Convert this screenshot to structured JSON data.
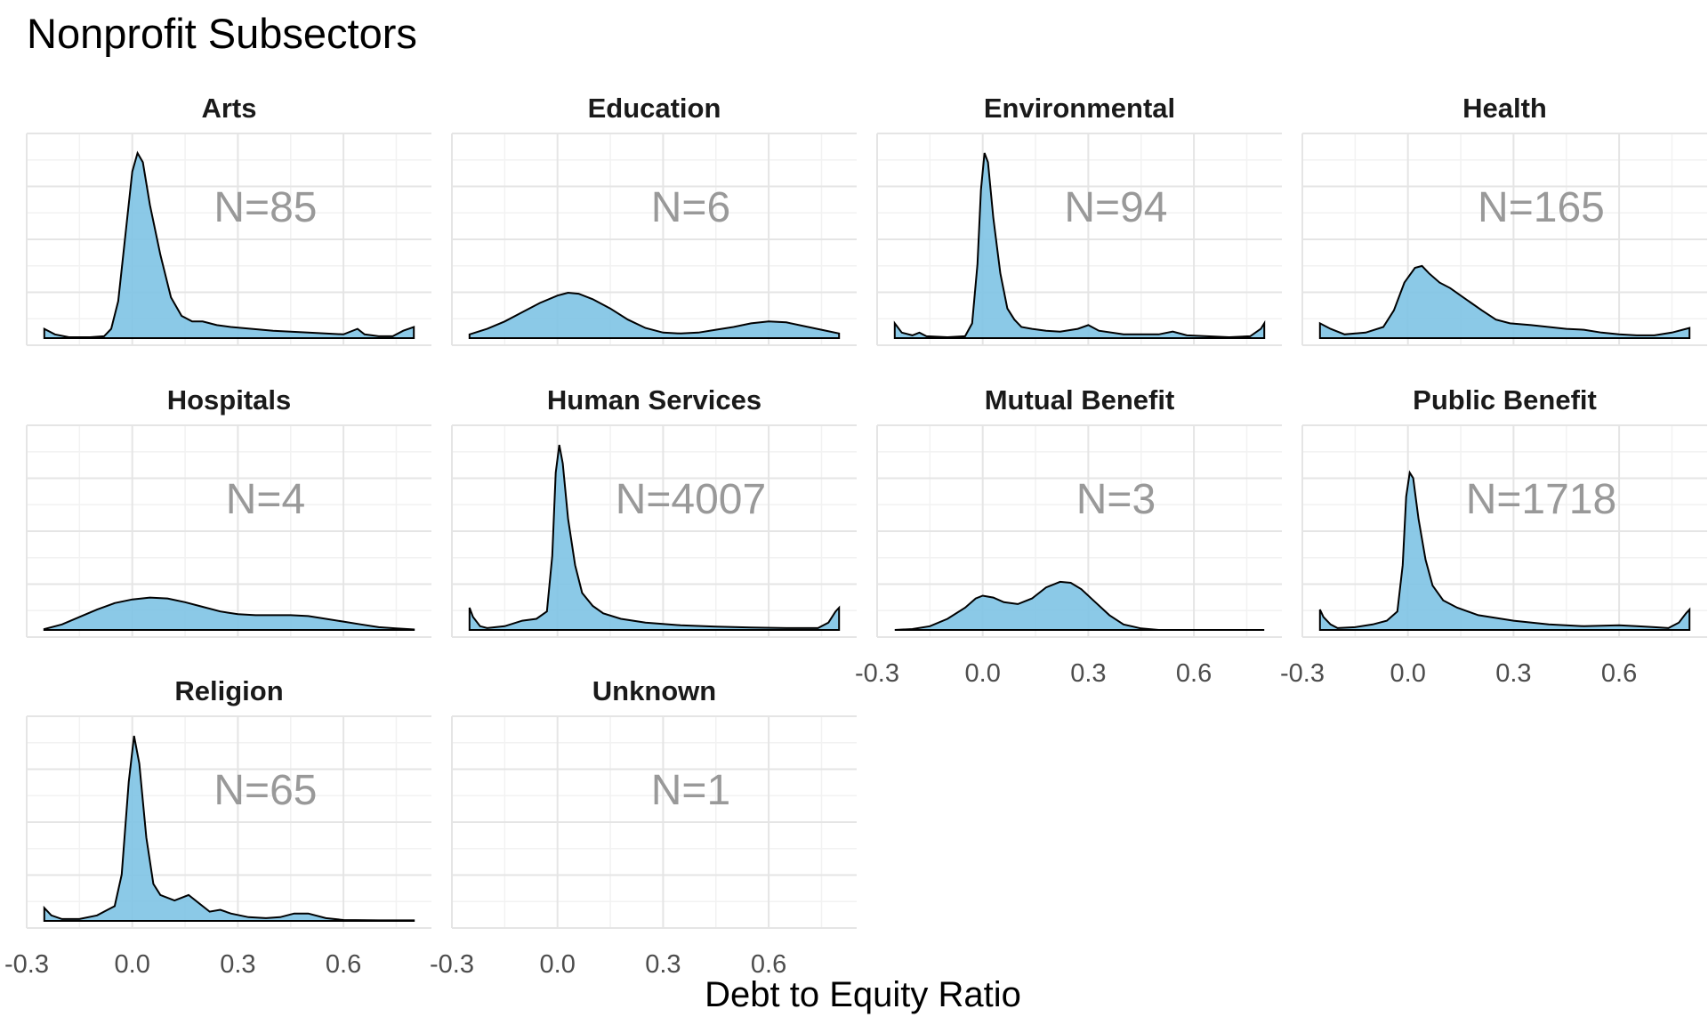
{
  "chart_data": {
    "type": "area",
    "title": "Nonprofit Subsectors",
    "xlabel": "Debt to Equity Ratio",
    "ylabel": "",
    "xlim": [
      -0.3,
      0.85
    ],
    "x_ticks": [
      "-0.3",
      "0.0",
      "0.3",
      "0.6"
    ],
    "x_tick_values": [
      -0.3,
      0.0,
      0.3,
      0.6
    ],
    "grid": true,
    "fill_color": "#7EC3E4",
    "line_color": "#000000",
    "label_color": "#999999",
    "panels": [
      {
        "name": "Arts",
        "n_label": "N=85",
        "x_axis_shown": false,
        "points": [
          [
            -0.25,
            0.05
          ],
          [
            -0.22,
            0.02
          ],
          [
            -0.18,
            0.005
          ],
          [
            -0.12,
            0.005
          ],
          [
            -0.08,
            0.01
          ],
          [
            -0.06,
            0.05
          ],
          [
            -0.04,
            0.2
          ],
          [
            -0.02,
            0.55
          ],
          [
            0.0,
            0.9
          ],
          [
            0.015,
            1.0
          ],
          [
            0.03,
            0.95
          ],
          [
            0.05,
            0.72
          ],
          [
            0.08,
            0.45
          ],
          [
            0.11,
            0.22
          ],
          [
            0.14,
            0.12
          ],
          [
            0.17,
            0.09
          ],
          [
            0.2,
            0.09
          ],
          [
            0.24,
            0.07
          ],
          [
            0.28,
            0.06
          ],
          [
            0.34,
            0.05
          ],
          [
            0.4,
            0.04
          ],
          [
            0.5,
            0.03
          ],
          [
            0.6,
            0.02
          ],
          [
            0.64,
            0.05
          ],
          [
            0.66,
            0.02
          ],
          [
            0.7,
            0.01
          ],
          [
            0.74,
            0.01
          ],
          [
            0.77,
            0.04
          ],
          [
            0.8,
            0.06
          ]
        ]
      },
      {
        "name": "Education",
        "n_label": "N=6",
        "x_axis_shown": false,
        "points": [
          [
            -0.25,
            0.02
          ],
          [
            -0.2,
            0.05
          ],
          [
            -0.15,
            0.09
          ],
          [
            -0.1,
            0.14
          ],
          [
            -0.05,
            0.19
          ],
          [
            0.0,
            0.23
          ],
          [
            0.03,
            0.245
          ],
          [
            0.06,
            0.24
          ],
          [
            0.1,
            0.21
          ],
          [
            0.15,
            0.16
          ],
          [
            0.2,
            0.1
          ],
          [
            0.25,
            0.055
          ],
          [
            0.3,
            0.03
          ],
          [
            0.35,
            0.025
          ],
          [
            0.4,
            0.03
          ],
          [
            0.45,
            0.045
          ],
          [
            0.5,
            0.06
          ],
          [
            0.55,
            0.08
          ],
          [
            0.6,
            0.09
          ],
          [
            0.65,
            0.085
          ],
          [
            0.7,
            0.065
          ],
          [
            0.75,
            0.045
          ],
          [
            0.8,
            0.025
          ]
        ]
      },
      {
        "name": "Environmental",
        "n_label": "N=94",
        "x_axis_shown": false,
        "points": [
          [
            -0.25,
            0.08
          ],
          [
            -0.23,
            0.03
          ],
          [
            -0.2,
            0.015
          ],
          [
            -0.18,
            0.03
          ],
          [
            -0.16,
            0.01
          ],
          [
            -0.1,
            0.005
          ],
          [
            -0.05,
            0.01
          ],
          [
            -0.03,
            0.08
          ],
          [
            -0.015,
            0.4
          ],
          [
            -0.005,
            0.8
          ],
          [
            0.005,
            1.0
          ],
          [
            0.015,
            0.95
          ],
          [
            0.03,
            0.65
          ],
          [
            0.05,
            0.35
          ],
          [
            0.07,
            0.16
          ],
          [
            0.09,
            0.1
          ],
          [
            0.11,
            0.06
          ],
          [
            0.14,
            0.05
          ],
          [
            0.18,
            0.04
          ],
          [
            0.22,
            0.035
          ],
          [
            0.27,
            0.05
          ],
          [
            0.3,
            0.07
          ],
          [
            0.33,
            0.04
          ],
          [
            0.4,
            0.02
          ],
          [
            0.5,
            0.02
          ],
          [
            0.54,
            0.035
          ],
          [
            0.58,
            0.015
          ],
          [
            0.7,
            0.005
          ],
          [
            0.76,
            0.01
          ],
          [
            0.79,
            0.05
          ],
          [
            0.8,
            0.08
          ]
        ]
      },
      {
        "name": "Health",
        "n_label": "N=165",
        "x_axis_shown": false,
        "points": [
          [
            -0.25,
            0.08
          ],
          [
            -0.22,
            0.05
          ],
          [
            -0.18,
            0.02
          ],
          [
            -0.12,
            0.03
          ],
          [
            -0.07,
            0.06
          ],
          [
            -0.04,
            0.15
          ],
          [
            -0.01,
            0.3
          ],
          [
            0.02,
            0.38
          ],
          [
            0.04,
            0.39
          ],
          [
            0.06,
            0.35
          ],
          [
            0.09,
            0.3
          ],
          [
            0.12,
            0.27
          ],
          [
            0.15,
            0.23
          ],
          [
            0.18,
            0.19
          ],
          [
            0.21,
            0.15
          ],
          [
            0.25,
            0.1
          ],
          [
            0.29,
            0.08
          ],
          [
            0.35,
            0.07
          ],
          [
            0.4,
            0.06
          ],
          [
            0.45,
            0.05
          ],
          [
            0.5,
            0.045
          ],
          [
            0.55,
            0.03
          ],
          [
            0.6,
            0.02
          ],
          [
            0.65,
            0.015
          ],
          [
            0.7,
            0.015
          ],
          [
            0.75,
            0.03
          ],
          [
            0.8,
            0.055
          ]
        ]
      },
      {
        "name": "Hospitals",
        "n_label": "N=4",
        "x_axis_shown": false,
        "points": [
          [
            -0.25,
            0.005
          ],
          [
            -0.2,
            0.03
          ],
          [
            -0.15,
            0.07
          ],
          [
            -0.1,
            0.11
          ],
          [
            -0.05,
            0.145
          ],
          [
            0.0,
            0.165
          ],
          [
            0.05,
            0.175
          ],
          [
            0.1,
            0.17
          ],
          [
            0.15,
            0.15
          ],
          [
            0.2,
            0.125
          ],
          [
            0.25,
            0.1
          ],
          [
            0.3,
            0.085
          ],
          [
            0.35,
            0.08
          ],
          [
            0.4,
            0.08
          ],
          [
            0.45,
            0.08
          ],
          [
            0.5,
            0.075
          ],
          [
            0.55,
            0.06
          ],
          [
            0.6,
            0.045
          ],
          [
            0.65,
            0.03
          ],
          [
            0.7,
            0.015
          ],
          [
            0.75,
            0.008
          ],
          [
            0.8,
            0.003
          ]
        ]
      },
      {
        "name": "Human Services",
        "n_label": "N=4007",
        "x_axis_shown": false,
        "points": [
          [
            -0.25,
            0.12
          ],
          [
            -0.24,
            0.07
          ],
          [
            -0.22,
            0.02
          ],
          [
            -0.2,
            0.01
          ],
          [
            -0.15,
            0.02
          ],
          [
            -0.1,
            0.05
          ],
          [
            -0.06,
            0.06
          ],
          [
            -0.03,
            0.1
          ],
          [
            -0.015,
            0.4
          ],
          [
            -0.005,
            0.85
          ],
          [
            0.005,
            1.0
          ],
          [
            0.015,
            0.9
          ],
          [
            0.03,
            0.6
          ],
          [
            0.05,
            0.35
          ],
          [
            0.07,
            0.2
          ],
          [
            0.1,
            0.13
          ],
          [
            0.13,
            0.09
          ],
          [
            0.18,
            0.06
          ],
          [
            0.25,
            0.04
          ],
          [
            0.35,
            0.025
          ],
          [
            0.45,
            0.018
          ],
          [
            0.55,
            0.013
          ],
          [
            0.65,
            0.01
          ],
          [
            0.74,
            0.01
          ],
          [
            0.77,
            0.04
          ],
          [
            0.79,
            0.1
          ],
          [
            0.8,
            0.12
          ]
        ]
      },
      {
        "name": "Mutual Benefit",
        "n_label": "N=3",
        "x_axis_shown": true,
        "points": [
          [
            -0.25,
            0.0
          ],
          [
            -0.2,
            0.005
          ],
          [
            -0.15,
            0.02
          ],
          [
            -0.1,
            0.06
          ],
          [
            -0.05,
            0.12
          ],
          [
            -0.02,
            0.17
          ],
          [
            0.0,
            0.185
          ],
          [
            0.03,
            0.175
          ],
          [
            0.06,
            0.15
          ],
          [
            0.1,
            0.14
          ],
          [
            0.14,
            0.17
          ],
          [
            0.18,
            0.23
          ],
          [
            0.22,
            0.26
          ],
          [
            0.25,
            0.255
          ],
          [
            0.28,
            0.22
          ],
          [
            0.32,
            0.15
          ],
          [
            0.36,
            0.08
          ],
          [
            0.4,
            0.03
          ],
          [
            0.45,
            0.008
          ],
          [
            0.5,
            0.0
          ],
          [
            0.6,
            0.0
          ],
          [
            0.7,
            0.0
          ],
          [
            0.8,
            0.0
          ]
        ]
      },
      {
        "name": "Public Benefit",
        "n_label": "N=1718",
        "x_axis_shown": true,
        "points": [
          [
            -0.25,
            0.11
          ],
          [
            -0.24,
            0.07
          ],
          [
            -0.22,
            0.03
          ],
          [
            -0.2,
            0.01
          ],
          [
            -0.15,
            0.015
          ],
          [
            -0.1,
            0.03
          ],
          [
            -0.06,
            0.05
          ],
          [
            -0.03,
            0.1
          ],
          [
            -0.015,
            0.35
          ],
          [
            -0.005,
            0.72
          ],
          [
            0.005,
            0.85
          ],
          [
            0.015,
            0.82
          ],
          [
            0.03,
            0.6
          ],
          [
            0.05,
            0.38
          ],
          [
            0.07,
            0.24
          ],
          [
            0.1,
            0.16
          ],
          [
            0.14,
            0.12
          ],
          [
            0.2,
            0.08
          ],
          [
            0.3,
            0.05
          ],
          [
            0.4,
            0.03
          ],
          [
            0.5,
            0.02
          ],
          [
            0.6,
            0.025
          ],
          [
            0.65,
            0.02
          ],
          [
            0.7,
            0.015
          ],
          [
            0.74,
            0.01
          ],
          [
            0.77,
            0.04
          ],
          [
            0.79,
            0.09
          ],
          [
            0.8,
            0.11
          ]
        ]
      },
      {
        "name": "Religion",
        "n_label": "N=65",
        "x_axis_shown": true,
        "points": [
          [
            -0.25,
            0.07
          ],
          [
            -0.23,
            0.03
          ],
          [
            -0.2,
            0.01
          ],
          [
            -0.15,
            0.01
          ],
          [
            -0.1,
            0.03
          ],
          [
            -0.07,
            0.06
          ],
          [
            -0.05,
            0.08
          ],
          [
            -0.03,
            0.25
          ],
          [
            -0.01,
            0.75
          ],
          [
            0.005,
            1.0
          ],
          [
            0.02,
            0.85
          ],
          [
            0.04,
            0.45
          ],
          [
            0.06,
            0.2
          ],
          [
            0.08,
            0.14
          ],
          [
            0.12,
            0.11
          ],
          [
            0.16,
            0.14
          ],
          [
            0.2,
            0.08
          ],
          [
            0.22,
            0.05
          ],
          [
            0.25,
            0.06
          ],
          [
            0.28,
            0.04
          ],
          [
            0.33,
            0.02
          ],
          [
            0.38,
            0.015
          ],
          [
            0.42,
            0.02
          ],
          [
            0.46,
            0.04
          ],
          [
            0.5,
            0.04
          ],
          [
            0.55,
            0.015
          ],
          [
            0.6,
            0.005
          ],
          [
            0.7,
            0.003
          ],
          [
            0.8,
            0.003
          ]
        ]
      },
      {
        "name": "Unknown",
        "n_label": "N=1",
        "x_axis_shown": true,
        "points": []
      }
    ]
  }
}
